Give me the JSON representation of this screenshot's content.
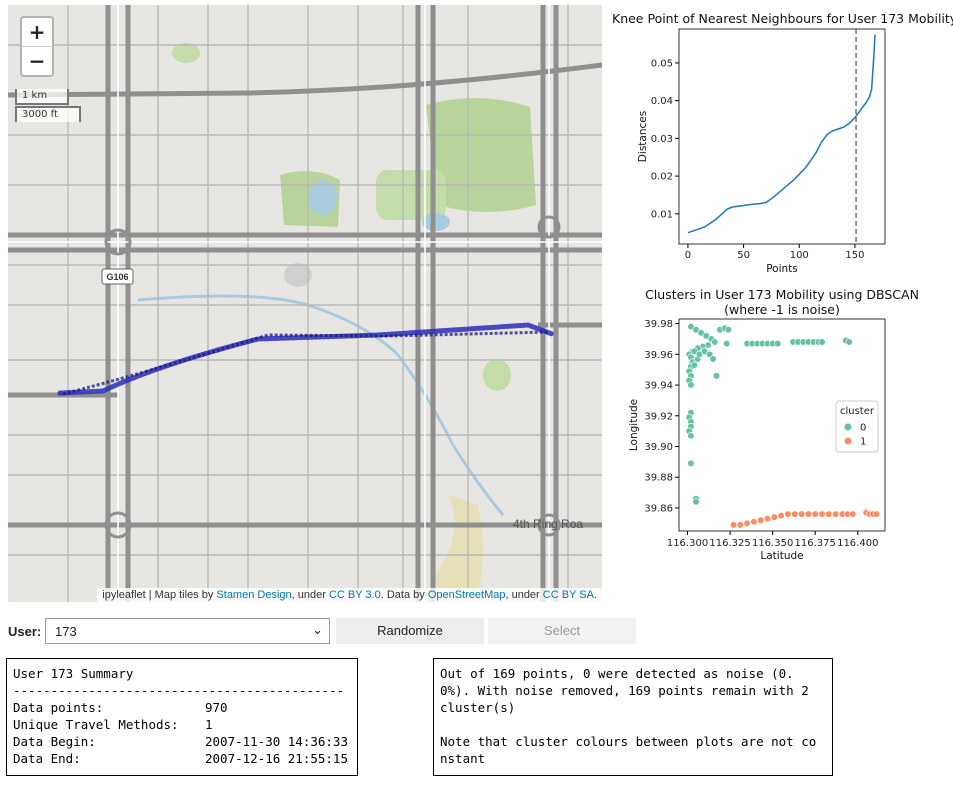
{
  "map": {
    "zoom_in": "+",
    "zoom_out": "−",
    "scale_km": "1 km",
    "scale_ft": "3000 ft",
    "road_badge": "G106",
    "ring_label": "4th Ring Roa",
    "attribution": {
      "prefix": "ipyleaflet | Map tiles by ",
      "stamen": "Stamen Design",
      "mid1": ", under ",
      "cc_by": "CC BY 3.0",
      "mid2": ". Data by ",
      "osm": "OpenStreetMap",
      "mid3": ", under ",
      "cc_sa": "CC BY SA",
      "suffix": "."
    },
    "track_color": "#2b2bb8"
  },
  "knee_chart": {
    "title": "Knee Point of Nearest Neighbours for User 173 Mobility",
    "xlabel": "Points",
    "ylabel": "Distances"
  },
  "cluster_chart": {
    "title_line1": "Clusters in User 173 Mobility using DBSCAN",
    "title_line2": "(where -1 is noise)",
    "xlabel": "Latitude",
    "ylabel": "Longitude",
    "legend_title": "cluster",
    "legend_items": [
      "0",
      "1"
    ]
  },
  "chart_data": [
    {
      "type": "line",
      "title": "Knee Point of Nearest Neighbours for User 173 Mobility",
      "xlabel": "Points",
      "ylabel": "Distances",
      "xlim": [
        -8,
        177
      ],
      "ylim": [
        0.002,
        0.059
      ],
      "xticks": [
        0,
        50,
        100,
        150
      ],
      "yticks": [
        0.01,
        0.02,
        0.03,
        0.04,
        0.05
      ],
      "vline_x": 151,
      "x": [
        0,
        5,
        10,
        15,
        20,
        25,
        30,
        35,
        40,
        45,
        50,
        55,
        60,
        65,
        70,
        75,
        80,
        85,
        90,
        95,
        100,
        105,
        110,
        115,
        120,
        125,
        130,
        135,
        140,
        145,
        150,
        155,
        160,
        163,
        165,
        167,
        168
      ],
      "y": [
        0.005,
        0.0055,
        0.006,
        0.0065,
        0.0075,
        0.0085,
        0.0098,
        0.0112,
        0.0118,
        0.012,
        0.0122,
        0.0124,
        0.0126,
        0.0127,
        0.013,
        0.014,
        0.0152,
        0.0165,
        0.0177,
        0.019,
        0.0205,
        0.022,
        0.024,
        0.0262,
        0.029,
        0.031,
        0.032,
        0.0325,
        0.033,
        0.034,
        0.0355,
        0.0375,
        0.0395,
        0.041,
        0.043,
        0.052,
        0.0575
      ],
      "colors": {
        "line": "#1f77b4",
        "vline": "#555555"
      }
    },
    {
      "type": "scatter",
      "title": "Clusters in User 173 Mobility using DBSCAN (where -1 is noise)",
      "xlabel": "Latitude",
      "ylabel": "Longitude",
      "xlim": [
        116.295,
        116.416
      ],
      "ylim": [
        39.845,
        39.983
      ],
      "xticks": [
        116.3,
        116.325,
        116.35,
        116.375,
        116.4
      ],
      "xtick_labels": [
        "116.300",
        "116.325",
        "116.350",
        "116.375",
        "116.400"
      ],
      "yticks": [
        39.86,
        39.88,
        39.9,
        39.92,
        39.94,
        39.96,
        39.98
      ],
      "yticks_labels": [
        "39.86",
        "39.88",
        "39.90",
        "39.92",
        "39.94",
        "39.96",
        "39.98"
      ],
      "legend": {
        "title": "cluster",
        "position": "center-right"
      },
      "series": [
        {
          "name": "0",
          "color": "#66c2a5",
          "points": [
            [
              116.302,
              39.978
            ],
            [
              116.305,
              39.976
            ],
            [
              116.308,
              39.974
            ],
            [
              116.311,
              39.972
            ],
            [
              116.314,
              39.97
            ],
            [
              116.316,
              39.968
            ],
            [
              116.312,
              39.966
            ],
            [
              116.309,
              39.965
            ],
            [
              116.306,
              39.964
            ],
            [
              116.303,
              39.962
            ],
            [
              116.301,
              39.96
            ],
            [
              116.302,
              39.958
            ],
            [
              116.303,
              39.955
            ],
            [
              116.302,
              39.952
            ],
            [
              116.301,
              39.949
            ],
            [
              116.302,
              39.946
            ],
            [
              116.301,
              39.943
            ],
            [
              116.302,
              39.94
            ],
            [
              116.304,
              39.962
            ],
            [
              116.306,
              39.957
            ],
            [
              116.304,
              39.953
            ],
            [
              116.307,
              39.96
            ],
            [
              116.31,
              39.962
            ],
            [
              116.313,
              39.96
            ],
            [
              116.315,
              39.957
            ],
            [
              116.317,
              39.946
            ],
            [
              116.319,
              39.976
            ],
            [
              116.322,
              39.977
            ],
            [
              116.324,
              39.976
            ],
            [
              116.323,
              39.967
            ],
            [
              116.302,
              39.922
            ],
            [
              116.301,
              39.919
            ],
            [
              116.302,
              39.916
            ],
            [
              116.302,
              39.913
            ],
            [
              116.301,
              39.91
            ],
            [
              116.302,
              39.907
            ],
            [
              116.302,
              39.889
            ],
            [
              116.305,
              39.866
            ],
            [
              116.305,
              39.864
            ],
            [
              116.335,
              39.967
            ],
            [
              116.338,
              39.967
            ],
            [
              116.341,
              39.967
            ],
            [
              116.344,
              39.967
            ],
            [
              116.347,
              39.967
            ],
            [
              116.35,
              39.967
            ],
            [
              116.353,
              39.967
            ],
            [
              116.362,
              39.968
            ],
            [
              116.365,
              39.968
            ],
            [
              116.368,
              39.968
            ],
            [
              116.371,
              39.968
            ],
            [
              116.374,
              39.968
            ],
            [
              116.377,
              39.968
            ],
            [
              116.379,
              39.968
            ],
            [
              116.393,
              39.969
            ],
            [
              116.395,
              39.968
            ]
          ]
        },
        {
          "name": "1",
          "color": "#fc8d62",
          "points": [
            [
              116.327,
              39.849
            ],
            [
              116.331,
              39.849
            ],
            [
              116.335,
              39.85
            ],
            [
              116.339,
              39.851
            ],
            [
              116.343,
              39.852
            ],
            [
              116.347,
              39.853
            ],
            [
              116.351,
              39.854
            ],
            [
              116.355,
              39.855
            ],
            [
              116.359,
              39.856
            ],
            [
              116.363,
              39.856
            ],
            [
              116.367,
              39.856
            ],
            [
              116.371,
              39.856
            ],
            [
              116.375,
              39.856
            ],
            [
              116.379,
              39.856
            ],
            [
              116.383,
              39.856
            ],
            [
              116.387,
              39.856
            ],
            [
              116.391,
              39.856
            ],
            [
              116.394,
              39.856
            ],
            [
              116.397,
              39.856
            ],
            [
              116.405,
              39.857
            ],
            [
              116.407,
              39.856
            ],
            [
              116.409,
              39.856
            ],
            [
              116.411,
              39.856
            ]
          ]
        }
      ]
    }
  ],
  "controls": {
    "user_label": "User:",
    "user_value": "173",
    "randomize_label": "Randomize",
    "select_label": "Select"
  },
  "summary": {
    "title": "User 173 Summary",
    "divider": "--------------------------------------------",
    "rows": [
      {
        "key": "Data points:",
        "value": "970"
      },
      {
        "key": "Unique Travel Methods:",
        "value": "1"
      },
      {
        "key": "Data Begin:",
        "value": "2007-11-30 14:36:33"
      },
      {
        "key": "Data End:",
        "value": "2007-12-16 21:55:15"
      }
    ]
  },
  "note": {
    "paragraph1": "Out of 169 points, 0 were detected as noise (0. 0%). With noise removed, 169 points remain with 2 cluster(s)",
    "paragraph2": "Note that cluster colours between plots are not co nstant"
  }
}
